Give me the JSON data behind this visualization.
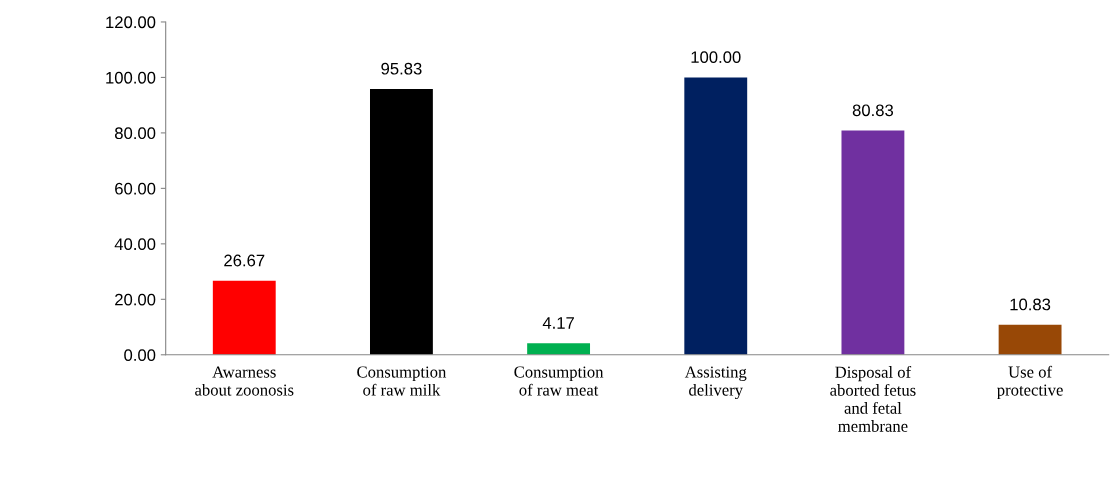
{
  "chart_data": {
    "type": "bar",
    "categories": [
      "Awarness\nabout zoonosis",
      "Consumption\nof raw milk",
      "Consumption\nof raw meat",
      "Assisting\ndelivery",
      "Disposal of\naborted fetus\nand fetal\nmembrane",
      "Use of\nprotective"
    ],
    "values": [
      26.67,
      95.83,
      4.17,
      100,
      80.83,
      10.83
    ],
    "colors": [
      "#ff0000",
      "#000000",
      "#00b050",
      "#002060",
      "#7030a0",
      "#984806"
    ],
    "value_labels": [
      "26.67",
      "95.83",
      "4.17",
      "100.00",
      "80.83",
      "10.83"
    ],
    "ylim": [
      0,
      120
    ],
    "yticks": [
      {
        "value": 0,
        "label": "0.00"
      },
      {
        "value": 20,
        "label": "20.00"
      },
      {
        "value": 40,
        "label": "40.00"
      },
      {
        "value": 60,
        "label": "60.00"
      },
      {
        "value": 80,
        "label": "80.00"
      },
      {
        "value": 100,
        "label": "100.00"
      },
      {
        "value": 120,
        "label": "120.00"
      }
    ],
    "grid": false,
    "legend": false
  }
}
